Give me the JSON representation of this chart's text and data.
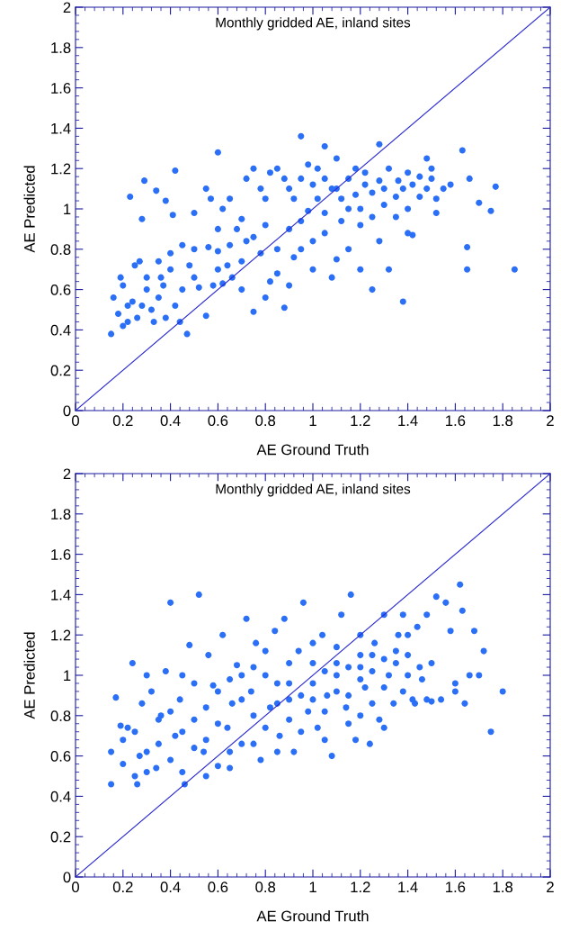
{
  "chart_data": [
    {
      "type": "scatter",
      "title": "Monthly gridded AE, inland sites",
      "xlabel": "AE Ground Truth",
      "ylabel": "AE Predicted",
      "xlim": [
        0,
        2
      ],
      "ylim": [
        0,
        2
      ],
      "xticks": [
        0,
        0.2,
        0.4,
        0.6,
        0.8,
        1,
        1.2,
        1.4,
        1.6,
        1.8,
        2
      ],
      "yticks": [
        0,
        0.2,
        0.4,
        0.6,
        0.8,
        1,
        1.2,
        1.4,
        1.6,
        1.8,
        2
      ],
      "grid": false,
      "series": [
        {
          "marker": "circle",
          "color": "#2a6ff5",
          "x": [
            0.95,
            1.05,
            1.28,
            1.63,
            0.6,
            1.66,
            1.77,
            1.75,
            1.7,
            1.65,
            1.65,
            1.85,
            0.42,
            0.29,
            0.23,
            0.28,
            0.34,
            0.41,
            0.38,
            0.15,
            0.16,
            0.18,
            0.2,
            0.19,
            0.22,
            0.24,
            0.25,
            0.27,
            0.26,
            0.28,
            0.3,
            0.32,
            0.33,
            0.35,
            0.36,
            0.37,
            0.38,
            0.4,
            0.42,
            0.44,
            0.45,
            0.47,
            0.48,
            0.5,
            0.52,
            0.55,
            0.56,
            0.58,
            0.6,
            0.62,
            0.64,
            0.66,
            0.68,
            0.7,
            0.72,
            0.75,
            0.78,
            0.8,
            0.82,
            0.85,
            0.88,
            0.9,
            0.92,
            0.95,
            0.98,
            1.0,
            1.02,
            1.05,
            1.08,
            1.1,
            1.12,
            1.15,
            1.18,
            1.2,
            1.22,
            1.25,
            1.28,
            1.3,
            1.32,
            1.35,
            1.38,
            1.4,
            1.42,
            1.45,
            1.48,
            1.5,
            1.52,
            1.55,
            1.58,
            1.4,
            1.36,
            0.5,
            0.55,
            0.57,
            0.6,
            0.62,
            0.65,
            0.7,
            0.72,
            0.75,
            0.78,
            0.8,
            0.82,
            0.85,
            0.88,
            0.9,
            0.92,
            0.95,
            0.98,
            1.0,
            1.02,
            1.05,
            1.08,
            1.1,
            1.12,
            1.15,
            1.18,
            1.2,
            1.22,
            1.25,
            1.28,
            1.3,
            1.32,
            1.35,
            1.38,
            1.4,
            1.45,
            1.48,
            1.5,
            1.52,
            1.42,
            0.6,
            0.65,
            0.7,
            0.75,
            0.8,
            0.85,
            0.9,
            0.95,
            1.0,
            1.05,
            1.1,
            1.15,
            1.2,
            1.25,
            0.45,
            0.5,
            0.4,
            0.35,
            0.3,
            0.22,
            0.2
          ],
          "values": [
            1.36,
            1.31,
            1.32,
            1.29,
            1.28,
            1.15,
            1.11,
            0.99,
            1.03,
            0.81,
            0.7,
            0.7,
            1.19,
            1.14,
            1.06,
            0.95,
            1.09,
            0.97,
            1.04,
            0.38,
            0.56,
            0.48,
            0.62,
            0.66,
            0.52,
            0.54,
            0.72,
            0.74,
            0.46,
            0.52,
            0.6,
            0.5,
            0.44,
            0.56,
            0.66,
            0.62,
            0.46,
            0.7,
            0.52,
            0.44,
            0.6,
            0.38,
            0.72,
            0.8,
            0.61,
            0.47,
            0.81,
            0.62,
            0.79,
            0.63,
            0.72,
            0.66,
            0.9,
            0.74,
            0.84,
            0.49,
            0.78,
            0.56,
            0.64,
            0.68,
            0.51,
            0.9,
            0.76,
            0.94,
            0.99,
            0.7,
            1.05,
            0.88,
            0.66,
            1.1,
            0.94,
            0.8,
            1.07,
            0.7,
            1.12,
            0.6,
            0.84,
            1.1,
            0.7,
            0.96,
            0.54,
            0.88,
            1.12,
            1.06,
            1.25,
            1.15,
            1.05,
            1.1,
            1.12,
            1.18,
            1.14,
            0.98,
            1.1,
            1.05,
            0.9,
            1.0,
            1.05,
            0.95,
            1.15,
            1.2,
            1.1,
            1.05,
            1.18,
            1.2,
            1.15,
            1.1,
            1.05,
            1.15,
            1.22,
            1.12,
            1.2,
            1.15,
            1.1,
            1.25,
            1.05,
            1.15,
            1.2,
            1.0,
            1.18,
            1.08,
            1.14,
            1.02,
            1.2,
            1.06,
            1.1,
            1.0,
            1.16,
            1.1,
            1.2,
            0.98,
            0.87,
            0.7,
            0.82,
            0.6,
            0.86,
            0.92,
            0.8,
            0.62,
            0.8,
            0.84,
            0.98,
            0.75,
            1.0,
            0.92,
            0.96,
            0.82,
            0.66,
            0.78,
            0.74,
            0.66,
            0.44,
            0.42
          ]
        },
        {
          "type": "line",
          "color": "#2a2ad0",
          "x": [
            0,
            2
          ],
          "values": [
            0,
            2
          ]
        }
      ]
    },
    {
      "type": "scatter",
      "title": "Monthly gridded AE, inland sites",
      "xlabel": "AE Ground Truth",
      "ylabel": "AE Predicted",
      "xlim": [
        0,
        2
      ],
      "ylim": [
        0,
        2
      ],
      "xticks": [
        0,
        0.2,
        0.4,
        0.6,
        0.8,
        1,
        1.2,
        1.4,
        1.6,
        1.8,
        2
      ],
      "yticks": [
        0,
        0.2,
        0.4,
        0.6,
        0.8,
        1,
        1.2,
        1.4,
        1.6,
        1.8,
        2
      ],
      "grid": false,
      "series": [
        {
          "marker": "circle",
          "color": "#2a6ff5",
          "x": [
            0.15,
            0.15,
            0.17,
            0.19,
            0.2,
            0.22,
            0.24,
            0.26,
            0.27,
            0.28,
            0.3,
            0.32,
            0.34,
            0.36,
            0.38,
            0.4,
            0.42,
            0.44,
            0.46,
            0.48,
            0.5,
            0.52,
            0.54,
            0.56,
            0.58,
            0.6,
            0.62,
            0.64,
            0.66,
            0.68,
            0.7,
            0.72,
            0.74,
            0.76,
            0.78,
            0.8,
            0.82,
            0.84,
            0.86,
            0.88,
            0.9,
            0.92,
            0.94,
            0.96,
            0.98,
            1.0,
            1.02,
            1.04,
            1.06,
            1.08,
            1.1,
            1.12,
            1.14,
            1.16,
            1.18,
            1.2,
            1.22,
            1.24,
            1.26,
            1.28,
            1.3,
            1.32,
            1.34,
            1.36,
            1.38,
            1.4,
            1.42,
            1.44,
            1.46,
            1.48,
            1.5,
            1.52,
            1.54,
            1.56,
            1.58,
            1.6,
            1.62,
            1.63,
            1.6,
            1.66,
            1.64,
            1.7,
            1.72,
            1.75,
            1.8,
            1.68,
            1.48,
            1.5,
            1.43,
            0.2,
            0.25,
            0.3,
            0.35,
            0.4,
            0.45,
            0.5,
            0.55,
            0.6,
            0.65,
            0.7,
            0.75,
            0.8,
            0.85,
            0.9,
            0.95,
            1.0,
            1.05,
            1.1,
            1.15,
            1.2,
            1.25,
            1.3,
            1.35,
            1.4,
            1.45,
            1.05,
            1.15,
            1.25,
            1.35,
            1.2,
            1.1,
            1.0,
            0.9,
            0.8,
            0.7,
            0.6,
            0.5,
            0.45,
            0.35,
            0.25,
            0.3,
            0.4,
            0.55,
            0.65,
            0.75,
            0.85,
            0.95,
            1.05,
            1.15,
            1.25,
            1.3,
            1.2,
            0.45,
            0.55,
            0.65,
            0.75,
            0.85,
            0.9,
            1.0,
            1.1,
            1.2,
            1.3,
            1.4,
            1.38
          ],
          "values": [
            0.46,
            0.62,
            0.89,
            0.75,
            0.68,
            0.74,
            1.06,
            0.46,
            0.6,
            0.86,
            1.0,
            0.92,
            0.54,
            0.8,
            1.02,
            1.36,
            0.7,
            0.88,
            0.46,
            1.15,
            0.78,
            1.4,
            0.62,
            1.1,
            0.95,
            0.55,
            1.2,
            0.74,
            0.86,
            1.05,
            0.66,
            1.28,
            0.92,
            1.16,
            0.58,
            1.0,
            0.84,
            1.22,
            0.7,
            1.28,
            0.96,
            0.62,
            1.12,
            1.36,
            0.82,
            1.06,
            0.74,
            1.2,
            0.9,
            0.6,
            1.0,
            1.3,
            0.84,
            1.4,
            0.68,
            1.1,
            0.94,
            0.66,
            1.16,
            0.78,
            1.3,
            1.0,
            0.86,
            1.2,
            0.92,
            1.1,
            0.88,
            1.24,
            0.98,
            1.3,
            1.06,
            1.39,
            0.88,
            1.36,
            1.22,
            0.92,
            1.45,
            1.32,
            0.96,
            1.0,
            0.86,
            1.0,
            1.12,
            0.72,
            0.92,
            1.22,
            0.88,
            0.87,
            0.86,
            0.56,
            0.72,
            0.62,
            0.66,
            0.58,
            0.72,
            0.64,
            0.84,
            0.76,
            0.62,
            0.88,
            0.8,
            0.74,
            0.96,
            0.78,
            0.9,
            0.96,
            1.02,
            0.92,
            1.04,
            0.98,
            1.02,
            0.94,
            1.06,
            1.0,
            1.04,
            0.82,
            0.9,
            1.1,
            1.12,
            1.2,
            1.14,
            1.16,
            1.06,
            1.12,
            1.0,
            0.92,
            0.96,
            1.0,
            0.78,
            0.5,
            0.52,
            0.82,
            0.68,
            0.98,
            1.04,
            0.86,
            0.72,
            0.68,
            0.76,
            0.86,
            0.74,
            0.8,
            0.52,
            0.5,
            0.54,
            0.66,
            0.62,
            0.88,
            0.88,
            1.06,
            1.04,
            1.08,
            1.2,
            1.3
          ]
        },
        {
          "type": "line",
          "color": "#2a2ad0",
          "x": [
            0,
            2
          ],
          "values": [
            0,
            2
          ]
        }
      ]
    }
  ]
}
